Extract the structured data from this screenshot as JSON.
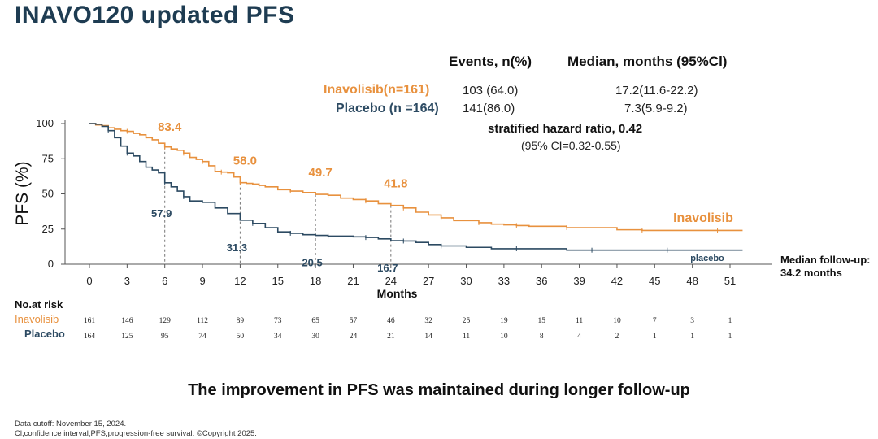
{
  "title": "INAVO120 updated PFS",
  "table": {
    "col_events": "Events, n(%)",
    "col_median": "Median, months (95%Cl)",
    "rows": [
      {
        "label": "Inavolisib(n=161)",
        "events": "103 (64.0)",
        "median": "17.2(11.6-22.2)"
      },
      {
        "label": "Placebo (n =164)",
        "events": "141(86.0)",
        "median": "7.3(5.9-9.2)"
      }
    ]
  },
  "hazard": {
    "text": "stratified hazard ratio, 0.42",
    "ci": "(95% CI=0.32-0.55)"
  },
  "follow_up": {
    "line1": "Median follow-up:",
    "line2": "34.2 months"
  },
  "risk_table": {
    "title": "No.at risk",
    "rows": [
      {
        "label": "Inavolisib",
        "values": [
          "161",
          "146",
          "129",
          "112",
          "89",
          "73",
          "65",
          "57",
          "46",
          "32",
          "25",
          "19",
          "15",
          "11",
          "10",
          "7",
          "3",
          "1"
        ]
      },
      {
        "label": "Placebo",
        "values": [
          "164",
          "125",
          "95",
          "74",
          "50",
          "34",
          "30",
          "24",
          "21",
          "14",
          "11",
          "10",
          "8",
          "4",
          "2",
          "1",
          "1",
          "1"
        ]
      }
    ]
  },
  "conclusion": "The improvement in PFS was maintained during longer follow-up",
  "footnotes": [
    "Data  cutoff: November 15, 2024.",
    "Cl,confidence interval;PFS,progression-free survival. ©Copyright 2025."
  ],
  "colors": {
    "inavolisib": "#e8913e",
    "placebo": "#2c4a62",
    "axis": "#555555",
    "dash": "#777777"
  },
  "chart_data": {
    "type": "line",
    "ylabel": "PFS  (%)",
    "xlabel": "Months",
    "xlim": [
      0,
      53
    ],
    "ylim": [
      0,
      100
    ],
    "x_ticks": [
      0,
      3,
      6,
      9,
      12,
      15,
      18,
      21,
      24,
      27,
      30,
      33,
      36,
      39,
      42,
      45,
      48,
      51
    ],
    "y_ticks": [
      0,
      25,
      50,
      75,
      100
    ],
    "series": [
      {
        "name": "Inavolisib",
        "color": "#e8913e",
        "points": [
          [
            0,
            100
          ],
          [
            0.5,
            99
          ],
          [
            1,
            98.5
          ],
          [
            1.5,
            97
          ],
          [
            2,
            96
          ],
          [
            2.5,
            95
          ],
          [
            3,
            94.5
          ],
          [
            3.5,
            93
          ],
          [
            4,
            92
          ],
          [
            4.5,
            90
          ],
          [
            5,
            88.5
          ],
          [
            5.5,
            86
          ],
          [
            6,
            83.4
          ],
          [
            6.5,
            82
          ],
          [
            7,
            81
          ],
          [
            7.5,
            79
          ],
          [
            8,
            76
          ],
          [
            8.5,
            74.5
          ],
          [
            9,
            73
          ],
          [
            9.5,
            70
          ],
          [
            10,
            66
          ],
          [
            10.5,
            65.5
          ],
          [
            11,
            65
          ],
          [
            11.5,
            62
          ],
          [
            12,
            58
          ],
          [
            12.5,
            57.5
          ],
          [
            13,
            57
          ],
          [
            13.5,
            56
          ],
          [
            14,
            55
          ],
          [
            15,
            53
          ],
          [
            16,
            52
          ],
          [
            17,
            51
          ],
          [
            18,
            49.7
          ],
          [
            19,
            49
          ],
          [
            20,
            47
          ],
          [
            21,
            46
          ],
          [
            22,
            45
          ],
          [
            23,
            43
          ],
          [
            24,
            41.8
          ],
          [
            25,
            40
          ],
          [
            26,
            37
          ],
          [
            27,
            35
          ],
          [
            28,
            33
          ],
          [
            29,
            31
          ],
          [
            30,
            31
          ],
          [
            31,
            29.5
          ],
          [
            32,
            28.5
          ],
          [
            33,
            28
          ],
          [
            34,
            27.5
          ],
          [
            35,
            27
          ],
          [
            36,
            27
          ],
          [
            38,
            26
          ],
          [
            40,
            26
          ],
          [
            42,
            24.5
          ],
          [
            44,
            24
          ],
          [
            46,
            24
          ],
          [
            48,
            24
          ],
          [
            50,
            24
          ],
          [
            52,
            24
          ]
        ]
      },
      {
        "name": "placebo",
        "color": "#2c4a62",
        "points": [
          [
            0,
            100
          ],
          [
            0.5,
            99.5
          ],
          [
            1,
            98
          ],
          [
            1.5,
            95
          ],
          [
            2,
            90
          ],
          [
            2.5,
            84
          ],
          [
            3,
            79
          ],
          [
            3.5,
            77
          ],
          [
            4,
            73
          ],
          [
            4.5,
            69
          ],
          [
            5,
            67
          ],
          [
            5.5,
            65
          ],
          [
            6,
            57.9
          ],
          [
            6.5,
            55
          ],
          [
            7,
            52
          ],
          [
            7.5,
            48
          ],
          [
            8,
            45
          ],
          [
            9,
            44
          ],
          [
            10,
            40
          ],
          [
            11,
            36
          ],
          [
            12,
            31.3
          ],
          [
            13,
            29
          ],
          [
            14,
            26
          ],
          [
            15,
            23
          ],
          [
            16,
            22
          ],
          [
            17,
            21
          ],
          [
            18,
            20.5
          ],
          [
            19,
            20
          ],
          [
            20,
            20
          ],
          [
            21,
            19.5
          ],
          [
            22,
            19
          ],
          [
            23,
            18
          ],
          [
            24,
            16.7
          ],
          [
            25,
            16.5
          ],
          [
            26,
            15.5
          ],
          [
            27,
            14
          ],
          [
            28,
            13
          ],
          [
            30,
            12
          ],
          [
            32,
            11
          ],
          [
            34,
            11
          ],
          [
            36,
            11
          ],
          [
            38,
            10
          ],
          [
            40,
            10
          ],
          [
            42,
            10
          ],
          [
            44,
            10
          ],
          [
            46,
            10
          ],
          [
            48,
            10
          ],
          [
            52,
            10
          ]
        ]
      }
    ],
    "annotations": [
      {
        "series": "Inavolisib",
        "x": 6,
        "y": 83.4,
        "label": "83.4"
      },
      {
        "series": "Inavolisib",
        "x": 12,
        "y": 58.0,
        "label": "58.0"
      },
      {
        "series": "Inavolisib",
        "x": 18,
        "y": 49.7,
        "label": "49.7"
      },
      {
        "series": "Inavolisib",
        "x": 24,
        "y": 41.8,
        "label": "41.8"
      },
      {
        "series": "placebo",
        "x": 6,
        "y": 57.9,
        "label": "57.9"
      },
      {
        "series": "placebo",
        "x": 12,
        "y": 31.3,
        "label": "31.3"
      },
      {
        "series": "placebo",
        "x": 18,
        "y": 20.5,
        "label": "20.5"
      },
      {
        "series": "placebo",
        "x": 24,
        "y": 16.7,
        "label": "16.7"
      }
    ],
    "series_labels": [
      {
        "series": "Inavolisib",
        "text": "Inavolisib"
      },
      {
        "series": "placebo",
        "text": "placebo"
      }
    ]
  }
}
